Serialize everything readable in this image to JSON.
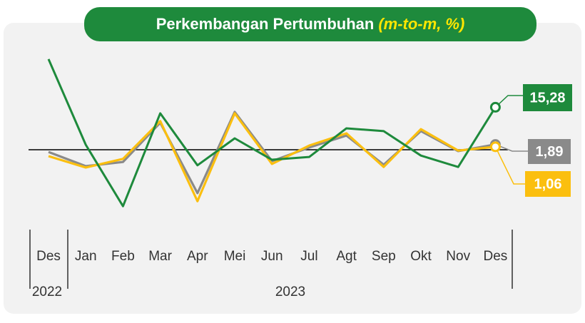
{
  "chart_data": {
    "type": "line",
    "title": "Perkembangan Pertumbuhan",
    "title_unit": "(m-to-m, %)",
    "categories": [
      "Des",
      "Jan",
      "Feb",
      "Mar",
      "Apr",
      "Mei",
      "Jun",
      "Jul",
      "Agt",
      "Sep",
      "Okt",
      "Nov",
      "Des"
    ],
    "year_groups": [
      "2022",
      "2023"
    ],
    "ylim": [
      -25,
      35
    ],
    "series": [
      {
        "color": "#8a8a8a",
        "values": [
          -0.8,
          -5.9,
          -4.4,
          9.7,
          -15.6,
          13.6,
          -4.1,
          0.8,
          5.1,
          -5.4,
          6.7,
          -0.5,
          1.89
        ],
        "value_labels": [
          null,
          null,
          null,
          null,
          null,
          null,
          null,
          null,
          null,
          null,
          null,
          null,
          "1,89"
        ]
      },
      {
        "color": "#fbbf0f",
        "values": [
          -2.3,
          -6.4,
          -3.3,
          10.3,
          -18.5,
          13.1,
          -5.1,
          1.5,
          5.9,
          -6.2,
          7.4,
          -0.3,
          1.06
        ],
        "value_labels": [
          null,
          null,
          null,
          null,
          null,
          null,
          null,
          null,
          null,
          null,
          null,
          null,
          "1,06"
        ]
      },
      {
        "color": "#1e8a3c",
        "values": [
          32.6,
          1.8,
          -20.3,
          13.1,
          -5.6,
          4.1,
          -3.6,
          -2.6,
          7.7,
          6.7,
          -2.1,
          -6.2,
          15.28
        ],
        "value_labels": [
          null,
          null,
          null,
          null,
          null,
          null,
          null,
          null,
          null,
          null,
          null,
          null,
          "15,28"
        ]
      }
    ]
  }
}
